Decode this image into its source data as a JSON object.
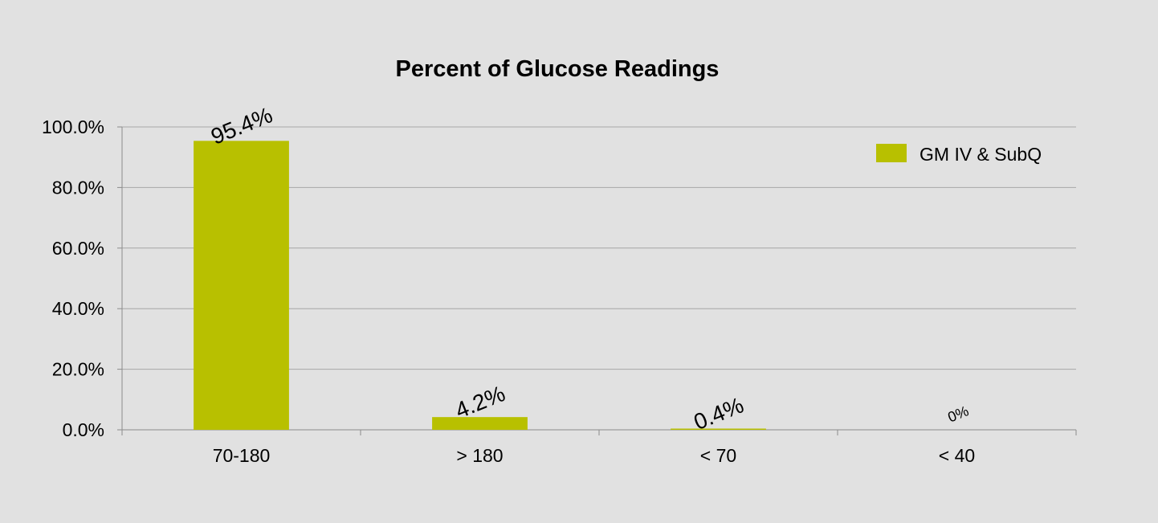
{
  "chart_data": {
    "type": "bar",
    "title": "Percent of Glucose Readings",
    "xlabel": "",
    "ylabel": "",
    "categories": [
      "70-180",
      "> 180",
      "< 70",
      "< 40"
    ],
    "series": [
      {
        "name": "GM IV & SubQ",
        "values": [
          95.4,
          4.2,
          0.4,
          0
        ],
        "data_labels": [
          "95.4%",
          "4.2%",
          "0.4%",
          "0%"
        ],
        "color": "#b8c000"
      }
    ],
    "ylim": [
      0,
      100
    ],
    "yticks": [
      0,
      20,
      40,
      60,
      80,
      100
    ],
    "ytick_labels": [
      "0.0%",
      "20.0%",
      "40.0%",
      "60.0%",
      "80.0%",
      "100.0%"
    ],
    "grid": true,
    "legend": "top-right",
    "background_color": "#e1e1e1",
    "gridline_color": "#a6a6a6"
  }
}
